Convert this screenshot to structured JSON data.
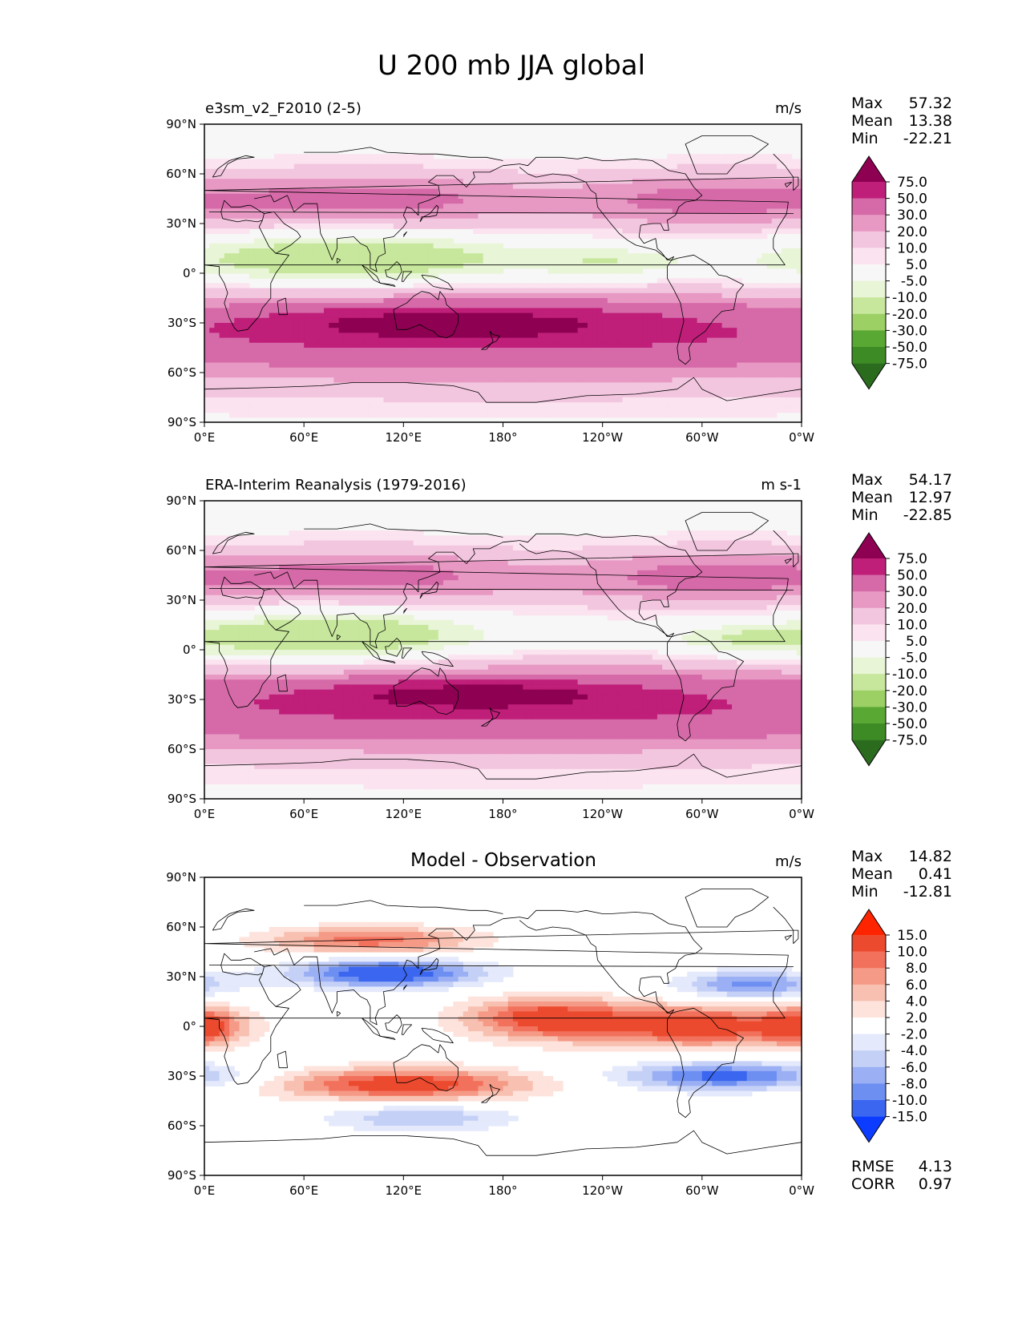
{
  "figure_title": "U 200 mb JJA global",
  "colors": {
    "test_levels": [
      "#2a6b1e",
      "#3d8b25",
      "#5aa834",
      "#9ccf64",
      "#c7e79c",
      "#e8f5d6",
      "#f7f7f7",
      "#fbe3f0",
      "#f3c6df",
      "#e799c4",
      "#d66aa9",
      "#bf1f79",
      "#8e0152"
    ],
    "diff_levels": [
      "#0b3cff",
      "#3a66f0",
      "#6e8ff2",
      "#9bb0f4",
      "#c5d0f7",
      "#e4e9fb",
      "#ffffff",
      "#fde3dc",
      "#f8c0b0",
      "#f59a86",
      "#f2715c",
      "#ec4a2e",
      "#ff2400"
    ],
    "coastline": "#000000",
    "frame": "#000000"
  },
  "panels": [
    {
      "id": "test",
      "left_title": "e3sm_v2_F2010 (2-5)",
      "center_title": "",
      "units": "m/s",
      "stats": [
        {
          "label": "Max",
          "value": "57.32"
        },
        {
          "label": "Mean",
          "value": "13.38"
        },
        {
          "label": "Min",
          "value": "-22.21"
        }
      ],
      "colorbar_labels": [
        "75.0",
        "50.0",
        "30.0",
        "20.0",
        "10.0",
        "5.0",
        "-5.0",
        "-10.0",
        "-20.0",
        "-30.0",
        "-50.0",
        "-75.0"
      ],
      "colormap": "test_levels"
    },
    {
      "id": "reference",
      "left_title": "ERA-Interim Reanalysis (1979-2016)",
      "center_title": "",
      "units": "m s-1",
      "stats": [
        {
          "label": "Max",
          "value": "54.17"
        },
        {
          "label": "Mean",
          "value": "12.97"
        },
        {
          "label": "Min",
          "value": "-22.85"
        }
      ],
      "colorbar_labels": [
        "75.0",
        "50.0",
        "30.0",
        "20.0",
        "10.0",
        "5.0",
        "-5.0",
        "-10.0",
        "-20.0",
        "-30.0",
        "-50.0",
        "-75.0"
      ],
      "colormap": "test_levels"
    },
    {
      "id": "difference",
      "left_title": "",
      "center_title": "Model - Observation",
      "units": "m/s",
      "stats": [
        {
          "label": "Max",
          "value": "14.82"
        },
        {
          "label": "Mean",
          "value": "0.41"
        },
        {
          "label": "Min",
          "value": "-12.81"
        }
      ],
      "extra_stats": [
        {
          "label": "RMSE",
          "value": "4.13"
        },
        {
          "label": "CORR",
          "value": "0.97"
        }
      ],
      "colorbar_labels": [
        "15.0",
        "10.0",
        "8.0",
        "6.0",
        "4.0",
        "2.0",
        "-2.0",
        "-4.0",
        "-6.0",
        "-8.0",
        "-10.0",
        "-15.0"
      ],
      "colormap": "diff_levels"
    }
  ],
  "axes": {
    "xticks": [
      "0°E",
      "60°E",
      "120°E",
      "180°",
      "120°W",
      "60°W",
      "0°W"
    ],
    "yticks": [
      "90°N",
      "60°N",
      "30°N",
      "0°",
      "30°S",
      "60°S",
      "90°S"
    ],
    "xlim": [
      0,
      360
    ],
    "ylim": [
      -90,
      90
    ]
  },
  "chart_data": [
    {
      "type": "heatmap",
      "title": "e3sm_v2_F2010 (2-5)",
      "xlim": [
        0,
        360
      ],
      "ylim": [
        -90,
        90
      ],
      "levels": [
        -75,
        -50,
        -30,
        -20,
        -10,
        -5,
        5,
        10,
        20,
        30,
        50,
        75
      ],
      "features": [
        {
          "lon": 150,
          "lat": -30,
          "dlon": 70,
          "dlat": 7,
          "value": 50
        },
        {
          "lon": 180,
          "lat": -40,
          "dlon": 240,
          "dlat": 22,
          "value": 32
        },
        {
          "lon": 100,
          "lat": 45,
          "dlon": 70,
          "dlat": 12,
          "value": 28
        },
        {
          "lon": 300,
          "lat": 45,
          "dlon": 55,
          "dlat": 12,
          "value": 25
        },
        {
          "lon": 90,
          "lat": 10,
          "dlon": 70,
          "dlat": 15,
          "value": -18
        },
        {
          "lon": 245,
          "lat": 5,
          "dlon": 30,
          "dlat": 8,
          "value": -9
        }
      ]
    },
    {
      "type": "heatmap",
      "title": "ERA-Interim Reanalysis (1979-2016)",
      "xlim": [
        0,
        360
      ],
      "ylim": [
        -90,
        90
      ],
      "levels": [
        -75,
        -50,
        -30,
        -20,
        -10,
        -5,
        5,
        10,
        20,
        30,
        50,
        75
      ],
      "features": [
        {
          "lon": 165,
          "lat": -27,
          "dlon": 60,
          "dlat": 6,
          "value": 48
        },
        {
          "lon": 180,
          "lat": -35,
          "dlon": 240,
          "dlat": 22,
          "value": 32
        },
        {
          "lon": 100,
          "lat": 45,
          "dlon": 70,
          "dlat": 12,
          "value": 27
        },
        {
          "lon": 300,
          "lat": 45,
          "dlon": 55,
          "dlat": 12,
          "value": 25
        },
        {
          "lon": 80,
          "lat": 8,
          "dlon": 60,
          "dlat": 15,
          "value": -20
        },
        {
          "lon": 325,
          "lat": 5,
          "dlon": 35,
          "dlat": 8,
          "value": -10
        }
      ]
    },
    {
      "type": "heatmap",
      "title": "Model - Observation",
      "xlim": [
        0,
        360
      ],
      "ylim": [
        -90,
        90
      ],
      "levels": [
        -15,
        -10,
        -8,
        -6,
        -4,
        -2,
        2,
        4,
        6,
        8,
        10,
        15
      ],
      "features": [
        {
          "lon": 110,
          "lat": 32,
          "dlon": 40,
          "dlat": 6,
          "value": -13
        },
        {
          "lon": 100,
          "lat": 52,
          "dlon": 45,
          "dlat": 6,
          "value": 9
        },
        {
          "lon": 205,
          "lat": 5,
          "dlon": 35,
          "dlat": 9,
          "value": 11
        },
        {
          "lon": 300,
          "lat": 0,
          "dlon": 50,
          "dlat": 9,
          "value": 12
        },
        {
          "lon": 315,
          "lat": -30,
          "dlon": 45,
          "dlat": 6,
          "value": -11
        },
        {
          "lon": 120,
          "lat": -35,
          "dlon": 55,
          "dlat": 7,
          "value": 12
        },
        {
          "lon": 130,
          "lat": -55,
          "dlon": 40,
          "dlat": 6,
          "value": -6
        },
        {
          "lon": 330,
          "lat": 25,
          "dlon": 30,
          "dlat": 6,
          "value": -9
        },
        {
          "lon": 0,
          "lat": 0,
          "dlon": 15,
          "dlat": 8,
          "value": 8
        }
      ]
    }
  ]
}
